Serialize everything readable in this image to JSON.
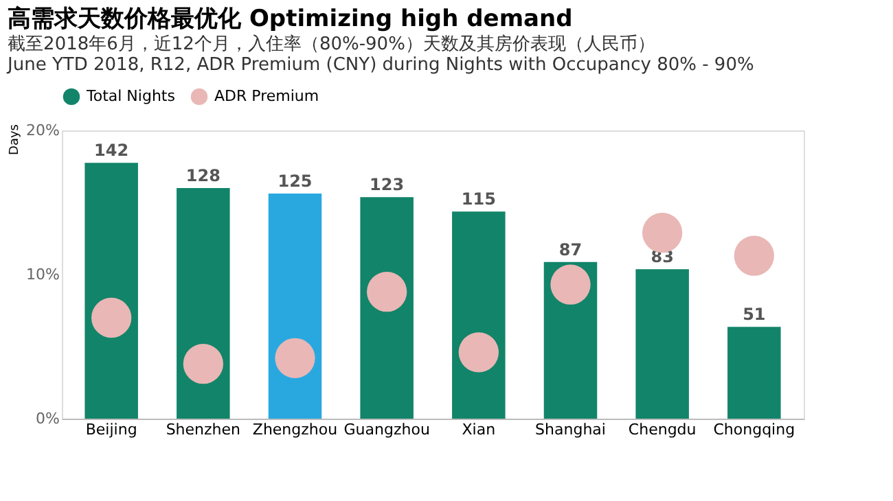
{
  "chart_data": {
    "type": "bar",
    "title": "高需求天数价格最优化 Optimizing high demand",
    "subtitle": [
      "截至2018年6月，近12个月，入住率（80%-90%）天数及其房价表现（人民币）",
      "June YTD 2018, R12, ADR Premium (CNY) during Nights with Occupancy 80% - 90%"
    ],
    "ylabel": "Days",
    "categories": [
      "Beijing",
      "Shenzhen",
      "Zhengzhou",
      "Guangzhou",
      "Xian",
      "Shanghai",
      "Chengdu",
      "Chongqing"
    ],
    "series": [
      {
        "name": "Total Nights",
        "axis": "y2",
        "color": "#12846a",
        "colors": [
          "#12846a",
          "#12846a",
          "#29a8e0",
          "#12846a",
          "#12846a",
          "#12846a",
          "#12846a",
          "#12846a"
        ],
        "values": [
          142,
          128,
          125,
          123,
          115,
          87,
          83,
          51
        ],
        "value_labels": [
          "142",
          "128",
          "125",
          "123",
          "115",
          "87",
          "83",
          "51"
        ]
      },
      {
        "name": "ADR Premium",
        "type": "scatter",
        "marker": "circle",
        "color": "#e9b7b5",
        "values": [
          7.0,
          3.8,
          4.2,
          8.8,
          4.6,
          9.3,
          12.9,
          11.3
        ]
      }
    ],
    "ylim": [
      0,
      20
    ],
    "yticks": [
      {
        "value": 0,
        "label": "0%"
      },
      {
        "value": 10,
        "label": "10%"
      },
      {
        "value": 20,
        "label": "20%"
      }
    ],
    "y2lim": [
      0,
      160
    ],
    "grid": false,
    "legend": "top"
  }
}
